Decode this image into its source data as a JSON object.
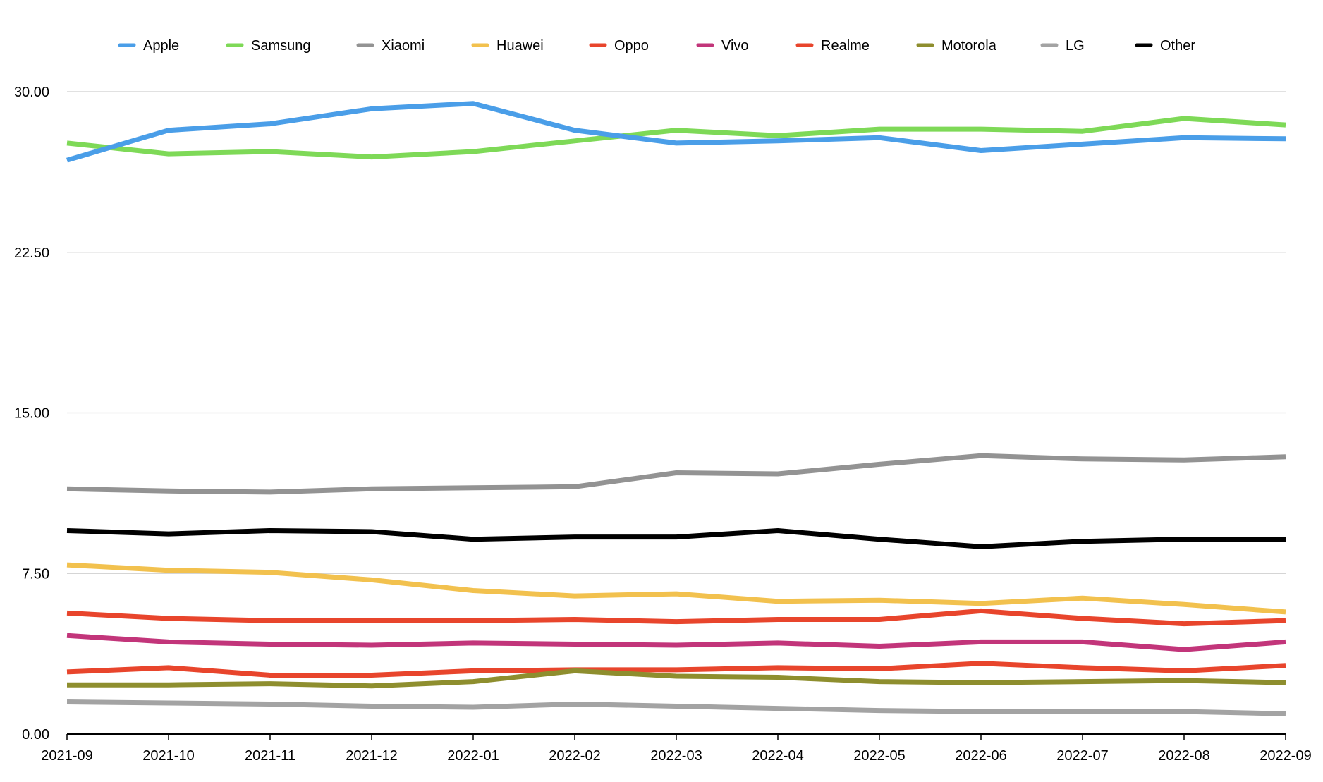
{
  "chart_data": {
    "type": "line",
    "title": "",
    "xlabel": "",
    "ylabel": "",
    "categories": [
      "2021-09",
      "2021-10",
      "2021-11",
      "2021-12",
      "2022-01",
      "2022-02",
      "2022-03",
      "2022-04",
      "2022-05",
      "2022-06",
      "2022-07",
      "2022-08",
      "2022-09"
    ],
    "ylim": [
      0,
      30
    ],
    "y_ticks": [
      "0.00",
      "7.50",
      "15.00",
      "22.50",
      "30.00"
    ],
    "grid": true,
    "legend_position": "top",
    "series": [
      {
        "name": "Apple",
        "color": "#4A9EE8",
        "values": [
          26.8,
          28.2,
          28.5,
          29.2,
          29.45,
          28.2,
          27.6,
          27.7,
          27.85,
          27.25,
          27.55,
          27.85,
          27.8
        ]
      },
      {
        "name": "Samsung",
        "color": "#7ED957",
        "values": [
          27.6,
          27.1,
          27.2,
          26.95,
          27.2,
          27.7,
          28.2,
          27.95,
          28.25,
          28.25,
          28.15,
          28.75,
          28.45
        ]
      },
      {
        "name": "Xiaomi",
        "color": "#939393",
        "values": [
          11.45,
          11.35,
          11.3,
          11.45,
          11.5,
          11.55,
          12.2,
          12.15,
          12.6,
          13.0,
          12.85,
          12.8,
          12.95
        ]
      },
      {
        "name": "Huawei",
        "color": "#F2C14E",
        "values": [
          7.9,
          7.65,
          7.55,
          7.2,
          6.7,
          6.45,
          6.55,
          6.2,
          6.25,
          6.1,
          6.35,
          6.05,
          5.7
        ]
      },
      {
        "name": "Oppo",
        "color": "#E8452C",
        "values": [
          5.65,
          5.4,
          5.3,
          5.3,
          5.3,
          5.35,
          5.25,
          5.35,
          5.35,
          5.75,
          5.4,
          5.15,
          5.3
        ]
      },
      {
        "name": "Vivo",
        "color": "#C2357A",
        "values": [
          4.6,
          4.3,
          4.2,
          4.15,
          4.25,
          4.2,
          4.15,
          4.25,
          4.1,
          4.3,
          4.3,
          3.95,
          4.3
        ]
      },
      {
        "name": "Realme",
        "color": "#E8452C",
        "values": [
          2.9,
          3.1,
          2.75,
          2.75,
          2.95,
          3.0,
          3.0,
          3.1,
          3.05,
          3.3,
          3.1,
          2.95,
          3.2
        ]
      },
      {
        "name": "Motorola",
        "color": "#8E8E2E",
        "values": [
          2.3,
          2.3,
          2.35,
          2.25,
          2.45,
          2.95,
          2.7,
          2.65,
          2.45,
          2.4,
          2.45,
          2.5,
          2.4
        ]
      },
      {
        "name": "LG",
        "color": "#A3A3A3",
        "values": [
          1.5,
          1.45,
          1.4,
          1.3,
          1.25,
          1.4,
          1.3,
          1.2,
          1.1,
          1.05,
          1.05,
          1.05,
          0.95
        ]
      },
      {
        "name": "Other",
        "color": "#000000",
        "values": [
          9.5,
          9.35,
          9.5,
          9.45,
          9.1,
          9.2,
          9.2,
          9.5,
          9.1,
          8.75,
          9.0,
          9.1,
          9.1
        ]
      }
    ]
  }
}
